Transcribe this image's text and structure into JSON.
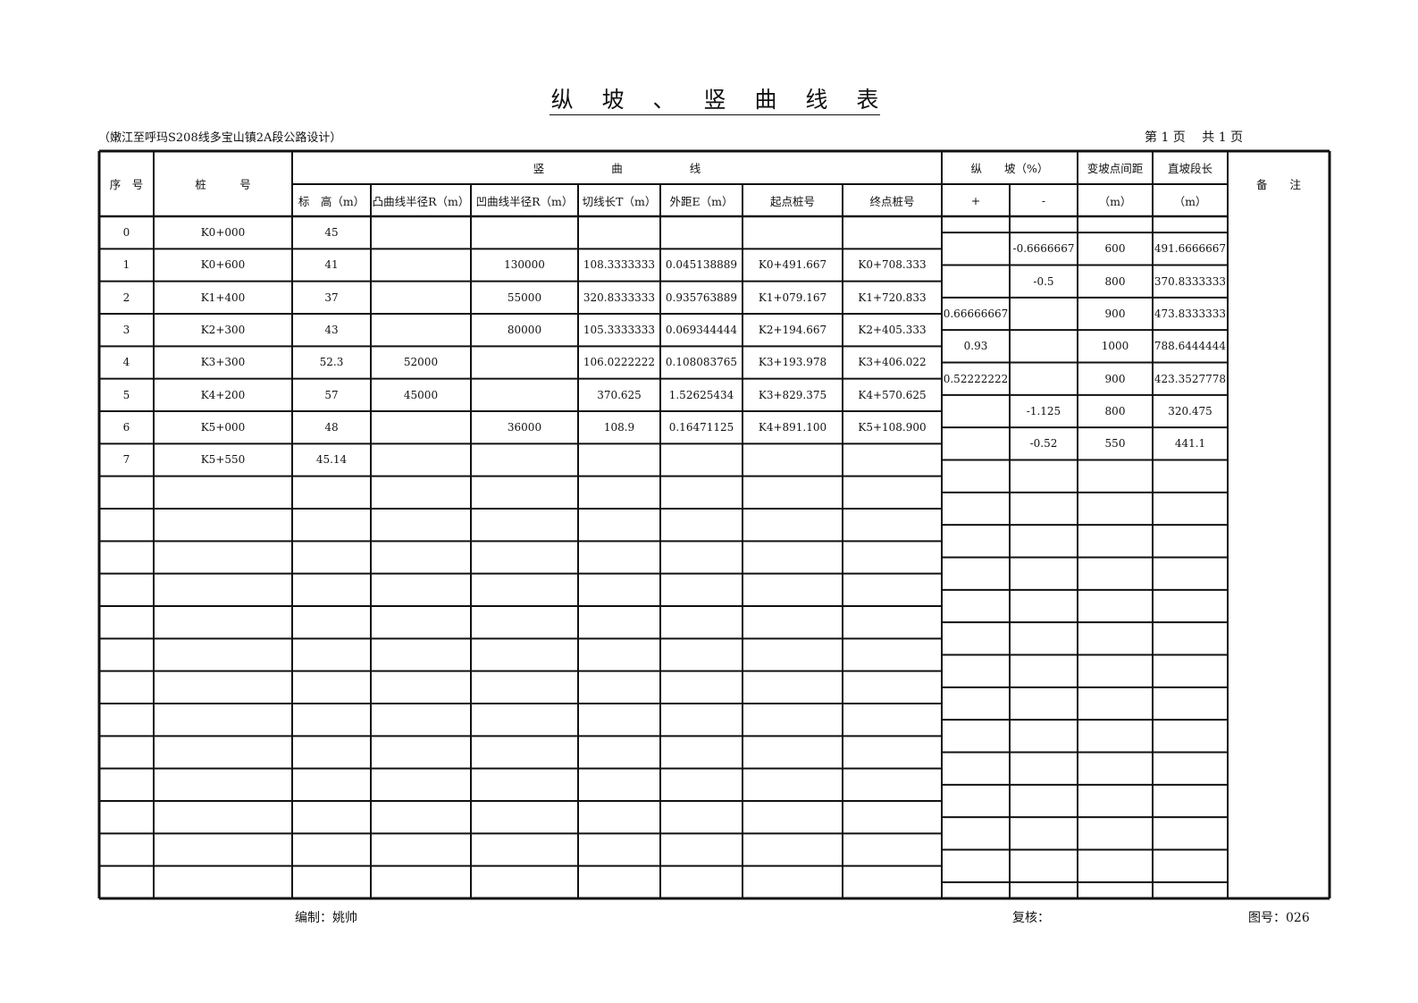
{
  "title": "纵 坡 、 竖 曲 线 表",
  "subtitle": "（嫩江至呼玛S208线多宝山镇2A段公路设计）",
  "page_info": "第 1 页　 共 1 页",
  "headers": {
    "seq": "序　号",
    "station": "桩　　　号",
    "vertical_curve": "竖　　　　　　曲　　　　　　线",
    "elevation": "标　高（m）",
    "convex_radius": "凸曲线半径R（m）",
    "concave_radius": "凹曲线半径R（m）",
    "tangent": "切线长T（m）",
    "external": "外距E（m）",
    "start_station": "起点桩号",
    "end_station": "终点桩号",
    "grade": "纵　　坡（%）",
    "grade_plus": "+",
    "grade_minus": "-",
    "pvi_distance": "变坡点间距",
    "pvi_distance_unit": "（m）",
    "straight_length": "直坡段长",
    "straight_length_unit": "（m）",
    "remarks": "备　　注"
  },
  "curve_rows": [
    [
      "0",
      "K0+000",
      "45",
      "",
      "",
      "",
      "",
      "",
      ""
    ],
    [
      "1",
      "K0+600",
      "41",
      "",
      "130000",
      "108.3333333",
      "0.045138889",
      "K0+491.667",
      "K0+708.333"
    ],
    [
      "2",
      "K1+400",
      "37",
      "",
      "55000",
      "320.8333333",
      "0.935763889",
      "K1+079.167",
      "K1+720.833"
    ],
    [
      "3",
      "K2+300",
      "43",
      "",
      "80000",
      "105.3333333",
      "0.069344444",
      "K2+194.667",
      "K2+405.333"
    ],
    [
      "4",
      "K3+300",
      "52.3",
      "52000",
      "",
      "106.0222222",
      "0.108083765",
      "K3+193.978",
      "K3+406.022"
    ],
    [
      "5",
      "K4+200",
      "57",
      "45000",
      "",
      "370.625",
      "1.52625434",
      "K3+829.375",
      "K4+570.625"
    ],
    [
      "6",
      "K5+000",
      "48",
      "",
      "36000",
      "108.9",
      "0.16471125",
      "K4+891.100",
      "K5+108.900"
    ],
    [
      "7",
      "K5+550",
      "45.14",
      "",
      "",
      "",
      "",
      "",
      ""
    ]
  ],
  "grade_rows": [
    [
      "",
      "-0.6666667",
      "600",
      "491.6666667"
    ],
    [
      "",
      "-0.5",
      "800",
      "370.8333333"
    ],
    [
      "0.66666667",
      "",
      "900",
      "473.8333333"
    ],
    [
      "0.93",
      "",
      "1000",
      "788.6444444"
    ],
    [
      "0.52222222",
      "",
      "900",
      "423.3527778"
    ],
    [
      "",
      "-1.125",
      "800",
      "320.475"
    ],
    [
      "",
      "-0.52",
      "550",
      "441.1"
    ]
  ],
  "footer": {
    "prepared_by": "编制：姚帅",
    "reviewed_by": "复核：",
    "drawing_no": "图号：026"
  }
}
